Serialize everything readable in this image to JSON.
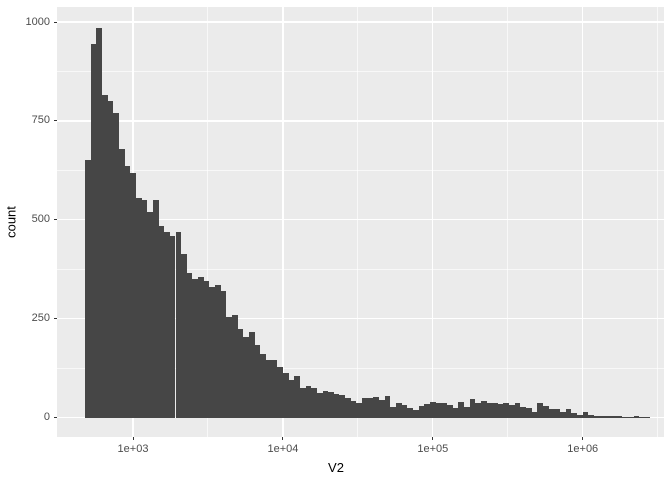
{
  "chart_data": {
    "type": "histogram",
    "title": "",
    "xlabel": "V2",
    "ylabel": "count",
    "xscale": "log10",
    "x_range_log10": [
      2.493,
      6.542
    ],
    "y_range": [
      -49,
      1038
    ],
    "x_major_ticks": [
      {
        "label": "1e+03",
        "log10": 3
      },
      {
        "label": "1e+04",
        "log10": 4
      },
      {
        "label": "1e+05",
        "log10": 5
      },
      {
        "label": "1e+06",
        "log10": 6
      }
    ],
    "x_minor_ticks_log10": [
      3.5,
      4.5,
      5.5,
      6.5
    ],
    "y_major_ticks": [
      {
        "label": "0",
        "value": 0
      },
      {
        "label": "250",
        "value": 250
      },
      {
        "label": "500",
        "value": 500
      },
      {
        "label": "750",
        "value": 750
      },
      {
        "label": "1000",
        "value": 1000
      }
    ],
    "y_minor_ticks": [
      125,
      375,
      625,
      875
    ],
    "grid": "major+minor",
    "legend": "none",
    "bins": {
      "start_log10": 2.68,
      "step_log10": 0.03772,
      "counts": [
        650,
        945,
        985,
        815,
        800,
        770,
        680,
        635,
        618,
        555,
        549,
        521,
        549,
        485,
        470,
        460,
        468,
        414,
        366,
        350,
        356,
        346,
        330,
        335,
        320,
        255,
        260,
        224,
        203,
        216,
        184,
        161,
        146,
        146,
        127,
        112,
        95,
        105,
        74,
        80,
        74,
        63,
        67,
        66,
        60,
        56,
        49,
        43,
        38,
        49,
        49,
        51,
        45,
        55,
        28,
        38,
        32,
        25,
        19,
        30,
        35,
        40,
        36,
        38,
        32,
        25,
        40,
        28,
        46,
        36,
        42,
        36,
        38,
        34,
        38,
        32,
        36,
        28,
        24,
        15,
        38,
        30,
        21,
        21,
        14,
        21,
        11,
        7,
        13,
        7,
        4,
        4,
        4,
        4,
        3,
        1,
        2,
        3,
        1,
        1
      ]
    },
    "colors": {
      "bar_fill": "#464646",
      "panel_bg": "#EBEBEB",
      "grid_major": "#FFFFFF",
      "grid_minor": "#FFFFFF",
      "tick_text": "#4D4D4D",
      "axis_title": "#000000",
      "tick_mark": "#333333",
      "figure_bg": "#FFFFFF"
    }
  }
}
